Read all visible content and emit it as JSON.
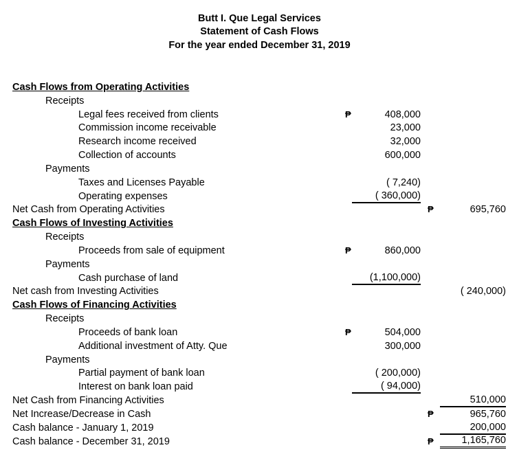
{
  "header": {
    "company": "Butt I. Que Legal Services",
    "statement": "Statement of Cash Flows",
    "period": "For the year ended December 31, 2019"
  },
  "currency_symbol": "₱",
  "rows": [
    {
      "label": "Cash Flows from Operating Activities",
      "level": 0,
      "heading": true
    },
    {
      "label": "Receipts",
      "level": 1
    },
    {
      "label": "Legal fees received from clients",
      "level": 2,
      "col1": "408,000",
      "peso1": true
    },
    {
      "label": "Commission income receivable",
      "level": 2,
      "col1": "23,000"
    },
    {
      "label": "Research income received",
      "level": 2,
      "col1": "32,000"
    },
    {
      "label": "Collection of accounts",
      "level": 2,
      "col1": "600,000"
    },
    {
      "label": "Payments",
      "level": 1
    },
    {
      "label": "Taxes and Licenses Payable",
      "level": 2,
      "col1": "( 7,240)"
    },
    {
      "label": "Operating expenses",
      "level": 2,
      "col1": "( 360,000)",
      "rule1": "single"
    },
    {
      "label": "Net Cash from Operating Activities",
      "level": 0,
      "col2": "695,760",
      "peso2": true
    },
    {
      "label": "Cash Flows of Investing Activities",
      "level": 0,
      "heading": true
    },
    {
      "label": "Receipts",
      "level": 1
    },
    {
      "label": "Proceeds from sale of equipment",
      "level": 2,
      "col1": "860,000",
      "peso1": true
    },
    {
      "label": "Payments",
      "level": 1
    },
    {
      "label": "Cash purchase of land",
      "level": 2,
      "col1": "(1,100,000)",
      "rule1": "single"
    },
    {
      "label": "Net cash from Investing Activities",
      "level": 0,
      "col2": "( 240,000)"
    },
    {
      "label": "Cash Flows of Financing Activities",
      "level": 0,
      "heading": true
    },
    {
      "label": "Receipts",
      "level": 1
    },
    {
      "label": "Proceeds of bank loan",
      "level": 2,
      "col1": "504,000",
      "peso1": true
    },
    {
      "label": "Additional investment of Atty. Que",
      "level": 2,
      "col1": "300,000"
    },
    {
      "label": "Payments",
      "level": 1
    },
    {
      "label": "Partial payment of bank loan",
      "level": 2,
      "col1": "( 200,000)"
    },
    {
      "label": "Interest on bank loan paid",
      "level": 2,
      "col1": "(  94,000)",
      "rule1": "single"
    },
    {
      "label": "Net Cash from Financing Activities",
      "level": 0,
      "col2": "510,000",
      "rule2": "single"
    },
    {
      "label": "Net Increase/Decrease in Cash",
      "level": 0,
      "col2": "965,760",
      "peso2": true
    },
    {
      "label": "Cash balance - January 1, 2019",
      "level": 0,
      "col2": "200,000",
      "rule2": "single"
    },
    {
      "label": "Cash balance - December 31, 2019",
      "level": 0,
      "col2": "1,165,760",
      "peso2": true,
      "rule2": "double"
    }
  ]
}
